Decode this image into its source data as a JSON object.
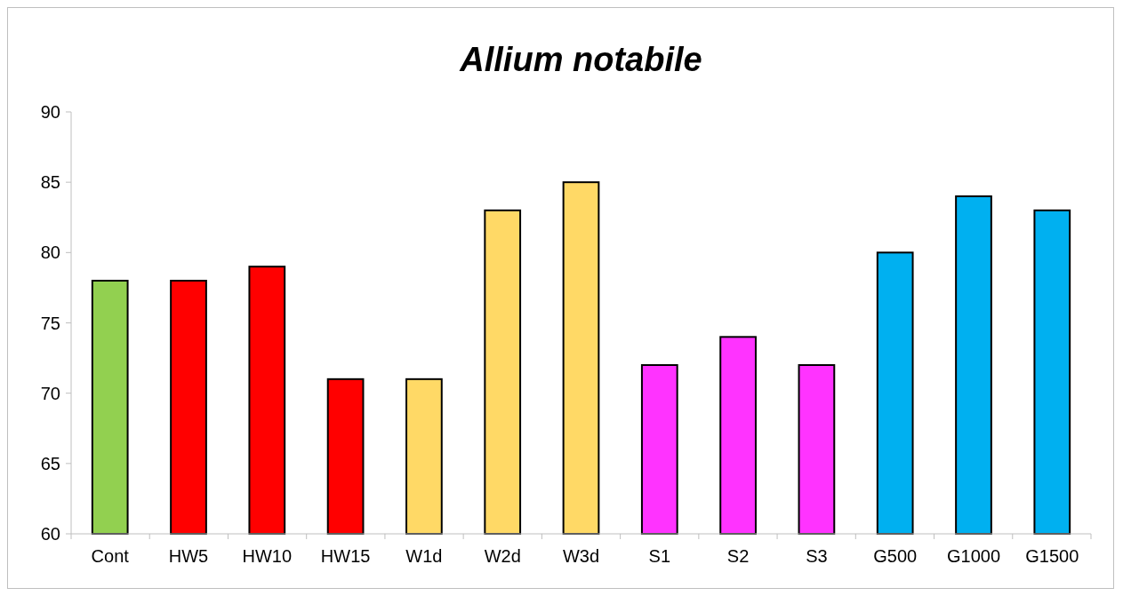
{
  "chart_data": {
    "type": "bar",
    "title": "Allium notabile",
    "categories": [
      "Cont",
      "HW5",
      "HW10",
      "HW15",
      "W1d",
      "W2d",
      "W3d",
      "S1",
      "S2",
      "S3",
      "G500",
      "G1000",
      "G1500"
    ],
    "values": [
      78,
      78,
      79,
      71,
      71,
      83,
      85,
      72,
      74,
      72,
      80,
      84,
      83
    ],
    "colors": [
      "#92d050",
      "#ff0000",
      "#ff0000",
      "#ff0000",
      "#ffd966",
      "#ffd966",
      "#ffd966",
      "#ff33ff",
      "#ff33ff",
      "#ff33ff",
      "#00b0f0",
      "#00b0f0",
      "#00b0f0"
    ],
    "ylim": [
      60,
      90
    ],
    "yticks": [
      60,
      65,
      70,
      75,
      80,
      85,
      90
    ],
    "grid": false
  }
}
